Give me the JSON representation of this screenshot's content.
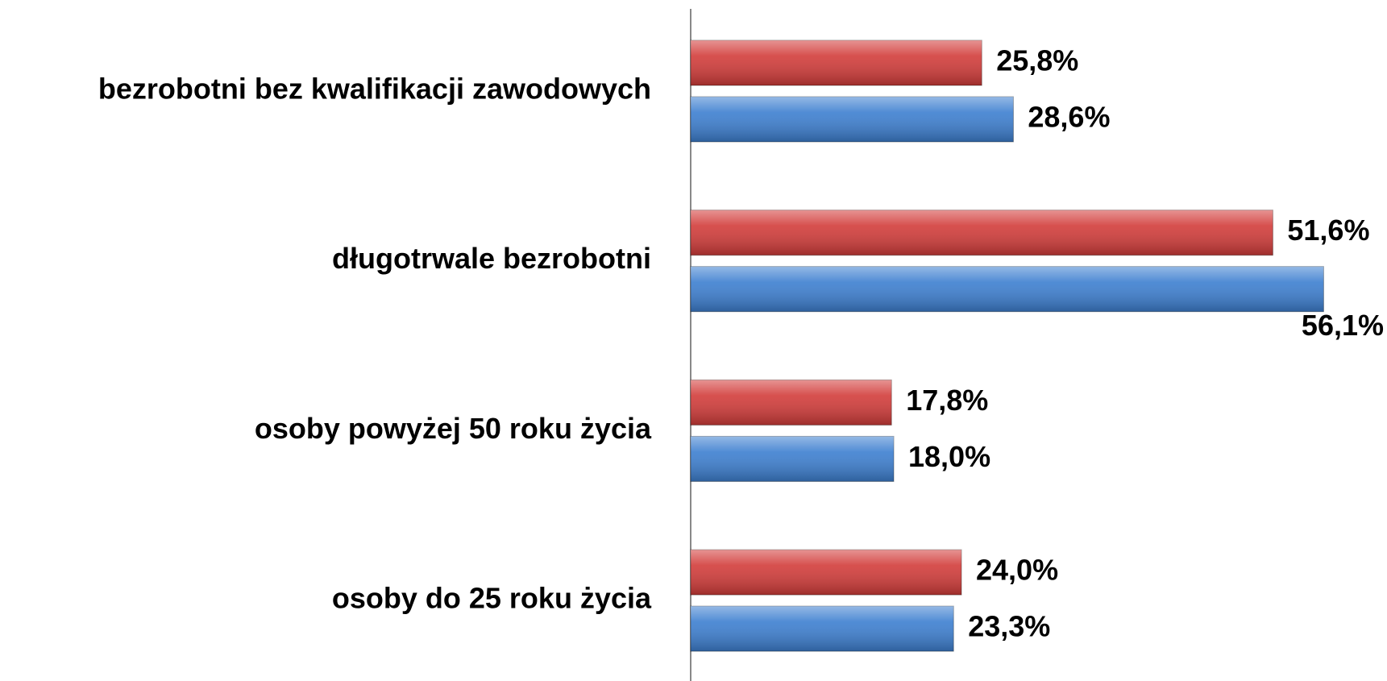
{
  "chart_data": {
    "type": "hbar",
    "categories": [
      "bezrobotni bez kwalifikacji zawodowych",
      "długotrwale bezrobotni",
      "osoby powyżej 50 roku życia",
      "osoby do 25 roku życia"
    ],
    "series": [
      {
        "color": "#d23c3a",
        "values": [
          25.8,
          51.6,
          17.8,
          24.0
        ],
        "value_labels": [
          "25,8%",
          "51,6%",
          "17,8%",
          "24,0%"
        ]
      },
      {
        "color": "#3d7fd0",
        "values": [
          28.6,
          56.1,
          18.0,
          23.3
        ],
        "value_labels": [
          "28,6%",
          "56,1%",
          "18,0%",
          "23,3%"
        ]
      }
    ]
  }
}
